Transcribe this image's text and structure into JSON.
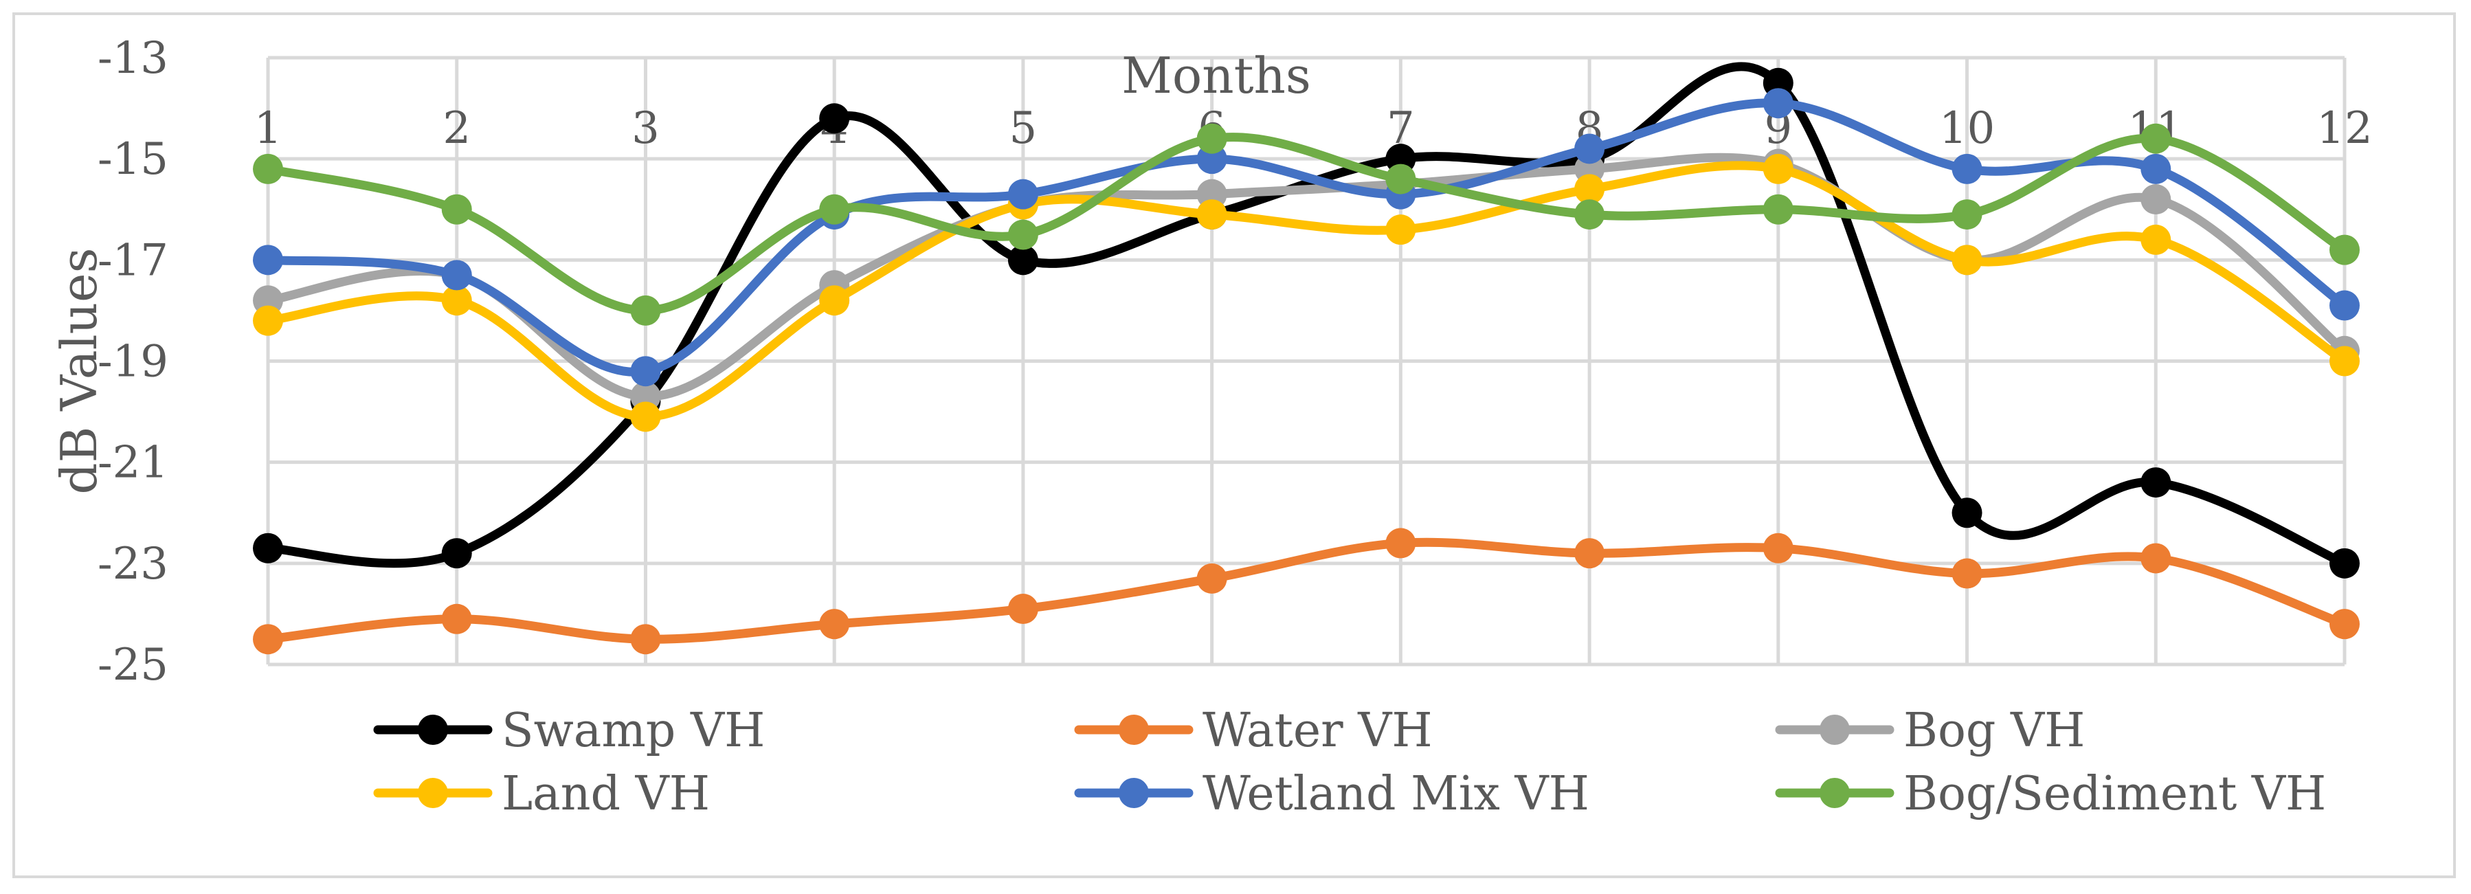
{
  "chart_data": {
    "type": "line",
    "title": "",
    "xlabel": "Months",
    "ylabel": "dB Values",
    "categories": [
      "1",
      "2",
      "3",
      "4",
      "5",
      "6",
      "7",
      "8",
      "9",
      "10",
      "11",
      "12"
    ],
    "ylim": [
      -25,
      -13
    ],
    "yticks": [
      -13,
      -15,
      -17,
      -19,
      -21,
      -23,
      -25
    ],
    "ytick_labels": [
      "-13",
      "-15",
      "-17",
      "-19",
      "-21",
      "-23",
      "-25"
    ],
    "grid": true,
    "legend_position": "bottom",
    "series": [
      {
        "name": "Swamp VH",
        "color": "#000000",
        "values": [
          -22.7,
          -22.8,
          -19.8,
          -14.2,
          -17.0,
          -16.1,
          -15.0,
          -15.0,
          -13.5,
          -22.0,
          -21.4,
          -23.0
        ]
      },
      {
        "name": "Water VH",
        "color": "#ED7D31",
        "values": [
          -24.5,
          -24.1,
          -24.5,
          -24.2,
          -23.9,
          -23.3,
          -22.6,
          -22.8,
          -22.7,
          -23.2,
          -22.9,
          -24.2
        ]
      },
      {
        "name": "Bog VH",
        "color": "#A5A5A5",
        "values": [
          -17.8,
          -17.3,
          -19.7,
          -17.5,
          -15.9,
          -15.7,
          -15.5,
          -15.2,
          -15.1,
          -17.0,
          -15.8,
          -18.8
        ]
      },
      {
        "name": "Land VH",
        "color": "#FFC000",
        "values": [
          -18.2,
          -17.8,
          -20.1,
          -17.8,
          -15.9,
          -16.1,
          -16.4,
          -15.6,
          -15.2,
          -17.0,
          -16.6,
          -19.0
        ]
      },
      {
        "name": "Wetland Mix VH",
        "color": "#4472C4",
        "values": [
          -17.0,
          -17.3,
          -19.2,
          -16.1,
          -15.7,
          -15.0,
          -15.7,
          -14.8,
          -13.9,
          -15.2,
          -15.2,
          -17.9
        ]
      },
      {
        "name": "Bog/Sediment VH",
        "color": "#70AD47",
        "values": [
          -15.2,
          -16.0,
          -18.0,
          -16.0,
          -16.5,
          -14.6,
          -15.4,
          -16.1,
          -16.0,
          -16.1,
          -14.6,
          -16.8
        ]
      }
    ]
  }
}
